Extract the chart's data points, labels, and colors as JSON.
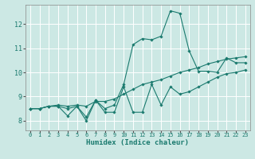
{
  "title": "",
  "xlabel": "Humidex (Indice chaleur)",
  "ylabel": "",
  "bg_color": "#cce8e4",
  "grid_color": "#ffffff",
  "line_color": "#1a7a6e",
  "xlim": [
    -0.5,
    23.5
  ],
  "ylim": [
    7.6,
    12.8
  ],
  "xticks": [
    0,
    1,
    2,
    3,
    4,
    5,
    6,
    7,
    8,
    9,
    10,
    11,
    12,
    13,
    14,
    15,
    16,
    17,
    18,
    19,
    20,
    21,
    22,
    23
  ],
  "yticks": [
    8,
    9,
    10,
    11,
    12
  ],
  "series": [
    [
      8.5,
      8.5,
      8.6,
      8.6,
      8.5,
      8.6,
      8.15,
      8.85,
      8.5,
      8.65,
      9.5,
      11.15,
      11.4,
      11.35,
      11.5,
      12.55,
      12.45,
      10.9,
      10.05,
      10.05,
      10.0,
      10.6,
      10.4,
      10.4
    ],
    [
      8.5,
      8.5,
      8.6,
      8.6,
      8.2,
      8.6,
      8.0,
      8.85,
      8.35,
      8.35,
      9.4,
      8.35,
      8.35,
      9.5,
      8.65,
      9.4,
      9.1,
      9.2,
      9.4,
      9.6,
      9.8,
      9.95,
      10.0,
      10.1
    ],
    [
      8.5,
      8.5,
      8.6,
      8.65,
      8.6,
      8.65,
      8.6,
      8.8,
      8.8,
      8.9,
      9.1,
      9.3,
      9.5,
      9.6,
      9.7,
      9.85,
      10.0,
      10.1,
      10.2,
      10.35,
      10.45,
      10.55,
      10.6,
      10.65
    ]
  ]
}
